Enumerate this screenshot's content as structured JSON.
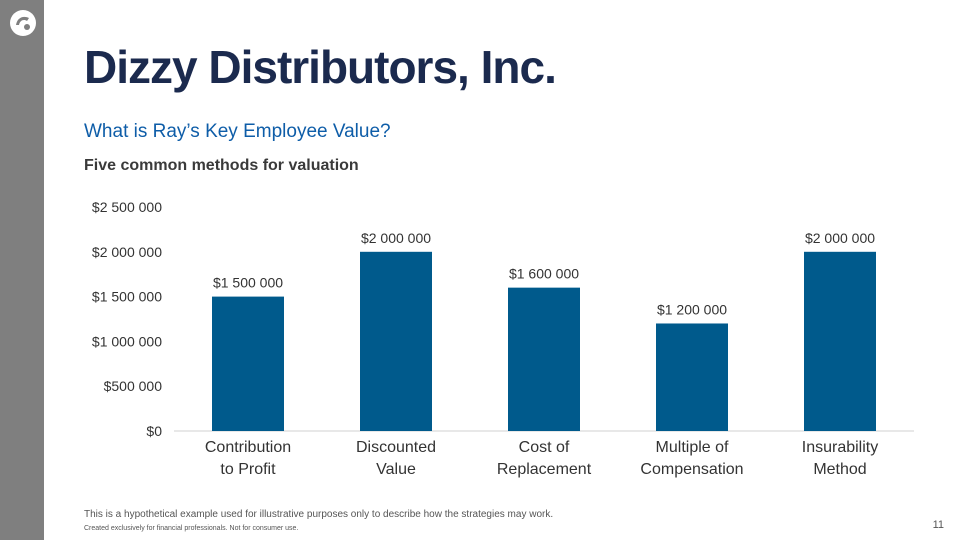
{
  "slide": {
    "title": "Dizzy Distributors, Inc.",
    "subtitle": "What is Ray’s Key Employee Value?",
    "subheading": "Five common methods for valuation",
    "footnote": "This is a hypothetical example used for illustrative purposes only to describe how the strategies may work.",
    "disclaimer": "Created exclusively for financial professionals. Not for consumer use.",
    "page_number": "11",
    "logo_icon": "circle-logo-icon"
  },
  "colors": {
    "bar": "#005a8c",
    "title": "#1b2a4e",
    "subtitle": "#0e5da8",
    "side_bar": "#7f7f7f"
  },
  "chart_data": {
    "type": "bar",
    "categories": [
      [
        "Contribution",
        "to Profit"
      ],
      [
        "Discounted",
        "Value"
      ],
      [
        "Cost of",
        "Replacement"
      ],
      [
        "Multiple of",
        "Compensation"
      ],
      [
        "Insurability",
        "Method"
      ]
    ],
    "values": [
      1500000,
      2000000,
      1600000,
      1200000,
      2000000
    ],
    "value_labels": [
      "$1 500 000",
      "$2 000 000",
      "$1 600 000",
      "$1 200 000",
      "$2 000 000"
    ],
    "ylim": [
      0,
      2500000
    ],
    "y_ticks": [
      0,
      500000,
      1000000,
      1500000,
      2000000,
      2500000
    ],
    "y_tick_labels": [
      "$0",
      "$500 000",
      "$1 000 000",
      "$1 500 000",
      "$2 000 000",
      "$2 500 000"
    ],
    "grid": false,
    "legend": "none",
    "xlabel": "",
    "ylabel": ""
  }
}
